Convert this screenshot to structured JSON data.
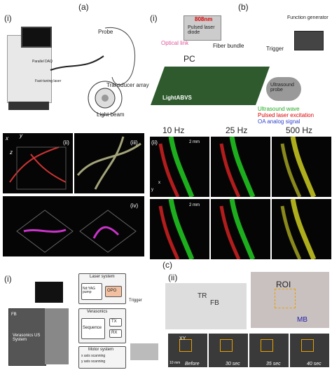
{
  "panel_a": {
    "label": "(a)",
    "sub": "(i)",
    "daq": "Parallel DAQ",
    "laser": "Fast-tuning laser",
    "probe": "Probe",
    "array": "Transducer array",
    "beam": "Light beam"
  },
  "panel_b": {
    "label": "(b)",
    "sub": "(i)",
    "wavelength": "808nm",
    "diode": "Pulsed laser diode",
    "generator": "Function generator",
    "trigger": "Trigger",
    "optical_link": "Optical link",
    "pc": "PC",
    "fiber": "Fiber bundle",
    "system": "LightABVS",
    "probe": "Ultrasound probe",
    "legend": [
      "Ultrasound wave",
      "Pulsed laser excitation",
      "OA analog signal"
    ]
  },
  "panel_3d": {
    "axes": [
      "x",
      "y",
      "z"
    ],
    "labels": [
      "(ii)",
      "(iii)",
      "(iv)"
    ]
  },
  "panel_rates": {
    "label": "(ii)",
    "columns": [
      "10 Hz",
      "25 Hz",
      "500 Hz"
    ],
    "scale_bars": [
      "2 mm",
      "2 mm"
    ],
    "axes": [
      "y",
      "x"
    ]
  },
  "panel_c": {
    "label": "(c)",
    "sub_i": "(i)",
    "sub_ii": "(ii)",
    "us_system": "Verasonics US System",
    "fb_left": "FB",
    "diagram": {
      "laser_system": "Laser system",
      "pump": "Nd:YAG pump",
      "opo": "OPO",
      "verasonics": "Verasonics",
      "sequence": "Sequence",
      "tx": "TX",
      "rx": "RX",
      "motor": "Motor system",
      "x_scan": "x axis scanning",
      "y_scan": "y axis scanning",
      "trigger": "Trigger"
    },
    "photo": {
      "tr": "TR",
      "fb": "FB",
      "roi": "ROI",
      "mb": "MB",
      "xy": "XY",
      "scale": "10 mm",
      "frames": [
        "Before",
        "30 sec",
        "35 sec",
        "40 sec"
      ]
    }
  }
}
